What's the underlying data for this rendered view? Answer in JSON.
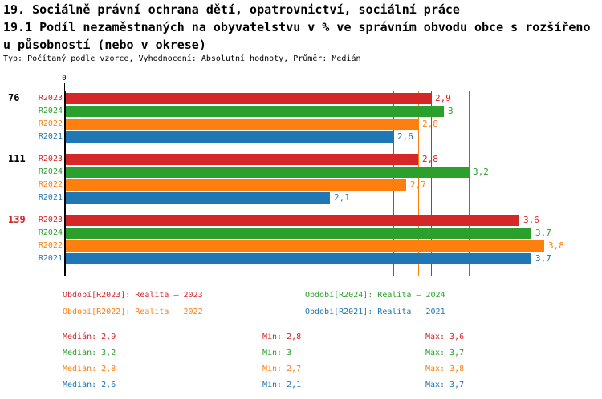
{
  "title": {
    "line1": "19. Sociálně právní ochrana dětí, opatrovnictví, sociální práce",
    "line2": "19.1 Podíl nezaměstnaných na obyvatelstvu v % ve správním obvodu obce s rozšířeno",
    "line3": "u působností (nebo v okrese)",
    "meta": "Typ: Počítaný podle vzorce, Vyhodnocení: Absolutní hodnoty, Průměr: Medián"
  },
  "colors": {
    "R2023": "#d62728",
    "R2024": "#2ca02c",
    "R2022": "#ff7f0e",
    "R2021": "#1f77b4",
    "axis": "#000000",
    "background": "#ffffff"
  },
  "chart_data": {
    "type": "bar",
    "orientation": "horizontal",
    "title": "",
    "xlabel": "",
    "ylabel": "",
    "xlim": [
      0,
      3.85
    ],
    "zero_tick_label": "0",
    "grid": false,
    "series_order": [
      "R2023",
      "R2024",
      "R2022",
      "R2021"
    ],
    "groups": [
      {
        "label": "76",
        "label_color": "#000000",
        "bars": [
          {
            "series": "R2023",
            "value": 2.9,
            "display": "2,9"
          },
          {
            "series": "R2024",
            "value": 3.0,
            "display": "3"
          },
          {
            "series": "R2022",
            "value": 2.8,
            "display": "2,8"
          },
          {
            "series": "R2021",
            "value": 2.6,
            "display": "2,6"
          }
        ]
      },
      {
        "label": "111",
        "label_color": "#000000",
        "bars": [
          {
            "series": "R2023",
            "value": 2.8,
            "display": "2,8"
          },
          {
            "series": "R2024",
            "value": 3.2,
            "display": "3,2"
          },
          {
            "series": "R2022",
            "value": 2.7,
            "display": "2,7"
          },
          {
            "series": "R2021",
            "value": 2.1,
            "display": "2,1"
          }
        ]
      },
      {
        "label": "139",
        "label_color": "#d62728",
        "bars": [
          {
            "series": "R2023",
            "value": 3.6,
            "display": "3,6"
          },
          {
            "series": "R2024",
            "value": 3.7,
            "display": "3,7"
          },
          {
            "series": "R2022",
            "value": 3.8,
            "display": "3,8"
          },
          {
            "series": "R2021",
            "value": 3.7,
            "display": "3,7"
          }
        ]
      }
    ],
    "median_lines": [
      {
        "series": "R2023",
        "value": 2.9
      },
      {
        "series": "R2024",
        "value": 3.2
      },
      {
        "series": "R2022",
        "value": 2.8
      },
      {
        "series": "R2021",
        "value": 2.6
      }
    ]
  },
  "legend": {
    "items": [
      {
        "series": "R2023",
        "text": "Období[R2023]: Realita – 2023"
      },
      {
        "series": "R2024",
        "text": "Období[R2024]: Realita – 2024"
      },
      {
        "series": "R2022",
        "text": "Období[R2022]: Realita – 2022"
      },
      {
        "series": "R2021",
        "text": "Období[R2021]: Realita – 2021"
      }
    ]
  },
  "stats": {
    "rows": [
      {
        "series": "R2023",
        "median": "Medián: 2,9",
        "min": "Min: 2,8",
        "max": "Max: 3,6"
      },
      {
        "series": "R2024",
        "median": "Medián: 3,2",
        "min": "Min: 3",
        "max": "Max: 3,7"
      },
      {
        "series": "R2022",
        "median": "Medián: 2,8",
        "min": "Min: 2,7",
        "max": "Max: 3,8"
      },
      {
        "series": "R2021",
        "median": "Medián: 2,6",
        "min": "Min: 2,1",
        "max": "Max: 3,7"
      }
    ]
  }
}
